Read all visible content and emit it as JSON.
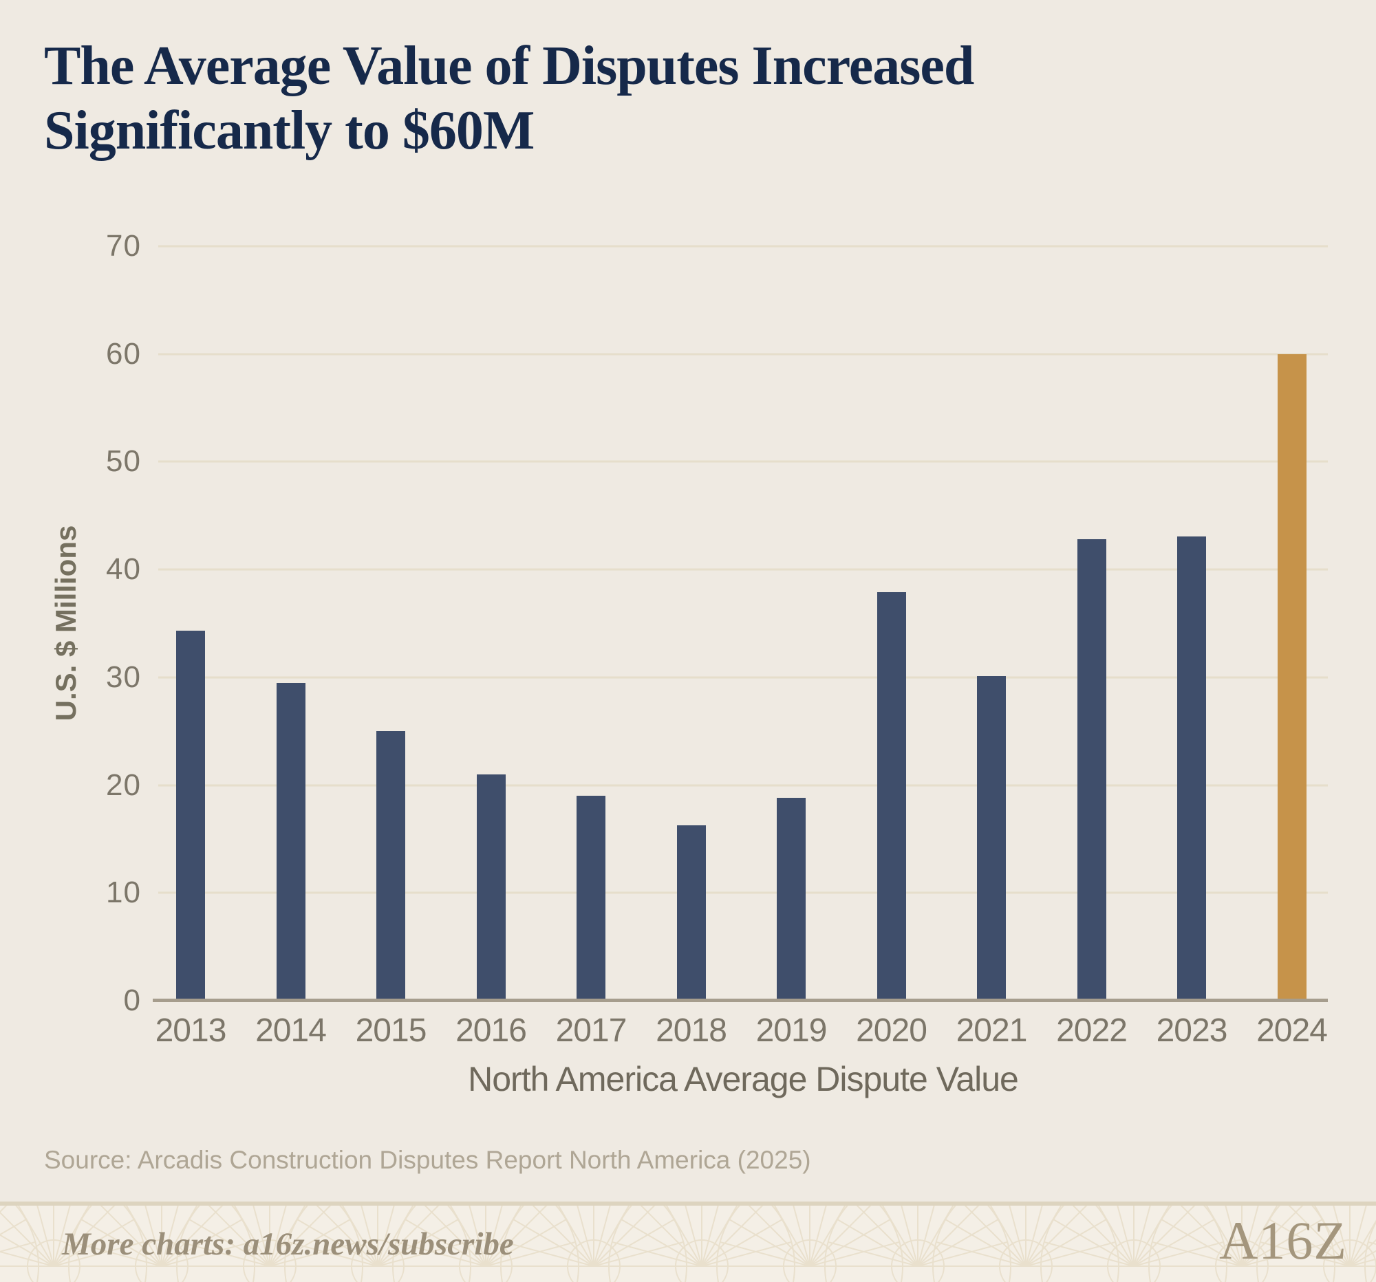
{
  "title": {
    "line1": "The Average Value of Disputes Increased",
    "line2": "Significantly to $60M"
  },
  "chart_data": {
    "type": "bar",
    "title": "The Average Value of Disputes Increased Significantly to $60M",
    "categories": [
      "2013",
      "2014",
      "2015",
      "2016",
      "2017",
      "2018",
      "2019",
      "2020",
      "2021",
      "2022",
      "2023",
      "2024"
    ],
    "values": [
      34.3,
      29.5,
      25.0,
      21.0,
      19.0,
      16.3,
      18.8,
      37.9,
      30.1,
      42.8,
      43.1,
      60.0
    ],
    "highlight_index": 11,
    "xlabel": "North America Average Dispute Value",
    "ylabel": "U.S. $ Millions",
    "ylim": [
      0,
      70
    ],
    "yticks": [
      0,
      10,
      20,
      30,
      40,
      50,
      60,
      70
    ],
    "grid": true,
    "legend": "none",
    "bar_color": "#3f4e6b",
    "highlight_color": "#c6934a"
  },
  "source": "Source: Arcadis Construction Disputes Report North America (2025)",
  "footer": {
    "more_charts": "More charts: a16z.news/subscribe",
    "logo_text": "A16Z"
  },
  "colors": {
    "background": "#efeae2",
    "title_navy": "#16294a",
    "bar_navy": "#3f4e6b",
    "bar_gold": "#c6934a",
    "gridline": "#e6decb",
    "axis_line": "#a69d8d",
    "tick_label": "#7c7669",
    "source_text": "#afa695",
    "footer_background": "#f4efe6",
    "footer_divider": "#ddd4bf",
    "footer_text": "#9b8f7a",
    "pattern_line": "#e9e0cd"
  }
}
